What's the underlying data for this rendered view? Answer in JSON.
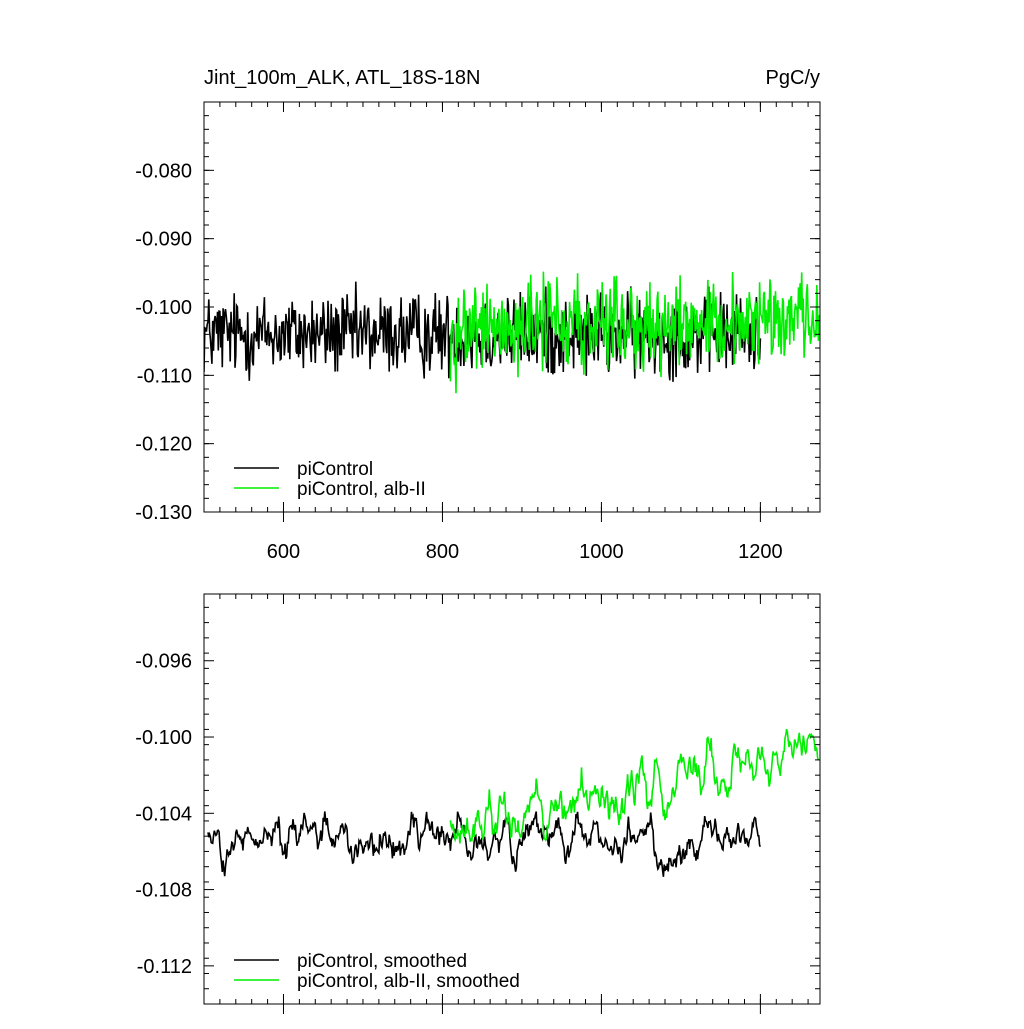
{
  "chart_data": [
    {
      "type": "line",
      "title_left": "Jint_100m_ALK, ATL_18S-18N",
      "title_right": "PgC/y",
      "xlabel": "",
      "ylabel": "",
      "xlim": [
        500,
        1275
      ],
      "ylim": [
        -0.13,
        -0.07
      ],
      "yticks": [
        -0.08,
        -0.09,
        -0.1,
        -0.11,
        -0.12,
        -0.13
      ],
      "ytick_labels": [
        "-0.080",
        "-0.090",
        "-0.100",
        "-0.110",
        "-0.120",
        "-0.130"
      ],
      "xticks": [
        600,
        800,
        1000,
        1200
      ],
      "xtick_labels": [
        "600",
        "800",
        "1000",
        "1200"
      ],
      "grid": false,
      "legend_position": "bottom-left",
      "series": [
        {
          "name": "piControl",
          "color": "#000000",
          "x_start": 500,
          "x_end": 1200,
          "base": -0.104,
          "amplitude": 0.009,
          "trend": 0.0,
          "noise": "annual"
        },
        {
          "name": "piControl, alb-II",
          "color": "#00ee00",
          "x_start": 810,
          "x_end": 1275,
          "base": -0.103,
          "amplitude": 0.01,
          "trend": 0.0015,
          "noise": "annual"
        }
      ]
    },
    {
      "type": "line",
      "xlim": [
        500,
        1275
      ],
      "ylim": [
        -0.114,
        -0.0925
      ],
      "yticks": [
        -0.096,
        -0.1,
        -0.104,
        -0.108,
        -0.112
      ],
      "ytick_labels": [
        "-0.096",
        "-0.100",
        "-0.104",
        "-0.108",
        "-0.112"
      ],
      "xticks": [
        600,
        800,
        1000,
        1200
      ],
      "grid": false,
      "legend_position": "bottom-left",
      "series": [
        {
          "name": "piControl, smoothed",
          "color": "#000000",
          "x_start": 505,
          "x_end": 1200,
          "base": -0.1055,
          "amplitude": 0.0025,
          "trend": 0.0,
          "noise": "smoothed"
        },
        {
          "name": "piControl, alb-II, smoothed",
          "color": "#00ee00",
          "x_start": 810,
          "x_end": 1273,
          "base": -0.1045,
          "amplitude": 0.0028,
          "trend": 0.004,
          "noise": "smoothed"
        }
      ]
    }
  ]
}
